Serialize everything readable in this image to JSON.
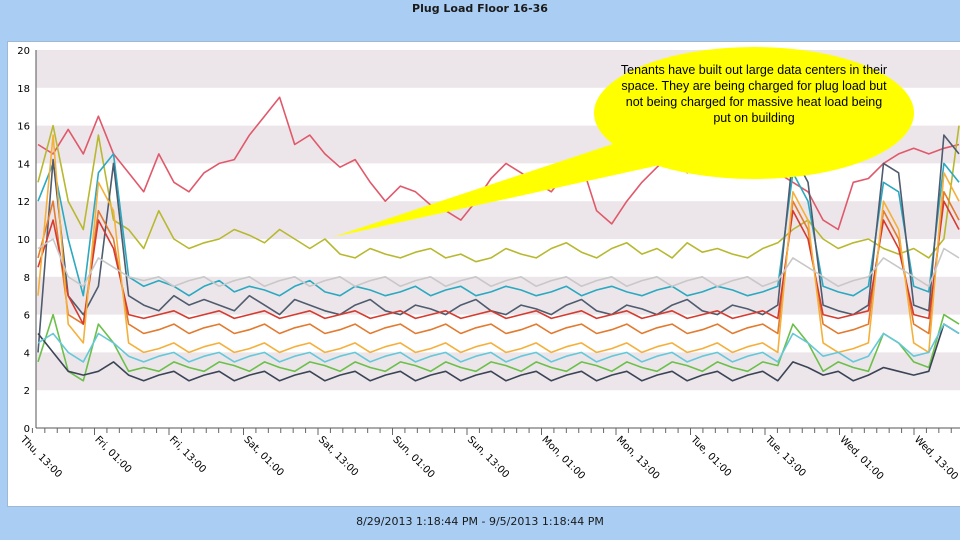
{
  "title": "Plug Load Floor 16-36",
  "footer": "8/29/2013 1:18:44 PM - 9/5/2013 1:18:44 PM",
  "callout": "Tenants have built out large data centers in their space. They are being charged for plug load but not being charged for massive heat load being put on building",
  "chart_data": {
    "type": "line",
    "title": "Plug Load Floor 16-36",
    "ylim": [
      0,
      20
    ],
    "yticks": [
      0,
      2,
      4,
      6,
      8,
      10,
      12,
      14,
      16,
      18,
      20
    ],
    "xlabels": [
      "Thu, 13:00",
      "Fri, 01:00",
      "Fri, 13:00",
      "Sat, 01:00",
      "Sat, 13:00",
      "Sun, 01:00",
      "Sun, 13:00",
      "Mon, 01:00",
      "Mon, 13:00",
      "Tue, 01:00",
      "Tue, 13:00",
      "Wed, 01:00",
      "Wed, 13:00"
    ],
    "grid_bands": true,
    "x_range_hours": [
      0,
      168
    ],
    "series": [
      {
        "color": "#e0596b",
        "values": [
          15.0,
          14.5,
          15.8,
          14.5,
          16.5,
          14.5,
          13.5,
          12.5,
          14.5,
          13.0,
          12.5,
          13.5,
          14.0,
          14.2,
          15.5,
          16.5,
          17.5,
          15.0,
          15.5,
          14.5,
          13.8,
          14.2,
          13.0,
          12.0,
          12.8,
          12.5,
          11.8,
          11.5,
          11.0,
          12.0,
          13.2,
          14.0,
          13.5,
          13.0,
          12.5,
          13.5,
          14.0,
          11.5,
          10.8,
          12.0,
          13.0,
          13.8,
          14.5,
          13.5,
          14.5,
          14.0,
          13.8,
          13.5,
          14.0,
          13.5,
          13.0,
          12.5,
          11.0,
          10.5,
          13.0,
          13.2,
          14.0,
          14.5,
          14.8,
          14.5,
          14.8,
          15.0
        ]
      },
      {
        "color": "#b8b830",
        "values": [
          13.0,
          16.0,
          12.0,
          10.5,
          15.5,
          11.0,
          10.5,
          9.5,
          11.5,
          10.0,
          9.5,
          9.8,
          10.0,
          10.5,
          10.2,
          9.8,
          10.5,
          10.0,
          9.5,
          10.0,
          9.2,
          9.0,
          9.5,
          9.2,
          9.0,
          9.3,
          9.5,
          9.0,
          9.2,
          8.8,
          9.0,
          9.5,
          9.2,
          9.0,
          9.5,
          9.8,
          9.3,
          9.0,
          9.5,
          9.8,
          9.2,
          9.5,
          9.0,
          9.8,
          9.3,
          9.5,
          9.2,
          9.0,
          9.5,
          9.8,
          10.5,
          11.0,
          10.0,
          9.5,
          9.8,
          10.0,
          9.5,
          9.2,
          9.5,
          9.0,
          10.0,
          16.0
        ]
      },
      {
        "color": "#2aa9c0",
        "values": [
          12.0,
          14.0,
          10.0,
          7.0,
          13.5,
          14.5,
          8.0,
          7.5,
          7.8,
          7.5,
          7.0,
          7.5,
          7.8,
          7.2,
          7.5,
          7.3,
          7.0,
          7.5,
          7.8,
          7.2,
          7.0,
          7.5,
          7.3,
          7.0,
          7.2,
          7.5,
          7.0,
          7.3,
          7.5,
          7.0,
          7.2,
          7.5,
          7.3,
          7.0,
          7.2,
          7.5,
          7.0,
          7.3,
          7.5,
          7.2,
          7.0,
          7.3,
          7.5,
          7.0,
          7.2,
          7.5,
          7.3,
          7.0,
          7.2,
          7.5,
          13.5,
          12.0,
          7.5,
          7.2,
          7.0,
          7.5,
          13.0,
          12.5,
          7.5,
          7.2,
          14.0,
          13.0
        ]
      },
      {
        "color": "#4f5b6e",
        "values": [
          4.0,
          14.2,
          7.0,
          6.0,
          7.5,
          14.0,
          7.0,
          6.5,
          6.2,
          7.0,
          6.5,
          6.8,
          6.5,
          6.2,
          7.0,
          6.5,
          6.0,
          6.8,
          6.5,
          6.2,
          6.0,
          6.5,
          6.8,
          6.2,
          6.0,
          6.5,
          6.3,
          6.0,
          6.5,
          6.8,
          6.2,
          6.0,
          6.5,
          6.3,
          6.0,
          6.5,
          6.8,
          6.2,
          6.0,
          6.5,
          6.3,
          6.0,
          6.5,
          6.8,
          6.2,
          6.0,
          6.5,
          6.3,
          6.0,
          6.5,
          14.5,
          13.0,
          6.5,
          6.2,
          6.0,
          6.5,
          14.0,
          13.5,
          6.5,
          6.2,
          15.5,
          14.5
        ]
      },
      {
        "color": "#e27a2f",
        "values": [
          9.0,
          12.0,
          6.0,
          5.5,
          11.5,
          10.0,
          5.5,
          5.0,
          5.2,
          5.5,
          5.0,
          5.3,
          5.5,
          5.0,
          5.2,
          5.5,
          5.0,
          5.3,
          5.5,
          5.0,
          5.2,
          5.5,
          5.0,
          5.3,
          5.5,
          5.0,
          5.2,
          5.5,
          5.0,
          5.3,
          5.5,
          5.0,
          5.2,
          5.5,
          5.0,
          5.3,
          5.5,
          5.0,
          5.2,
          5.5,
          5.0,
          5.3,
          5.5,
          5.0,
          5.2,
          5.5,
          5.0,
          5.3,
          5.5,
          5.0,
          12.0,
          10.5,
          5.5,
          5.0,
          5.2,
          5.5,
          11.5,
          10.0,
          5.5,
          5.0,
          12.5,
          11.0
        ]
      },
      {
        "color": "#d63b2f",
        "values": [
          8.5,
          11.0,
          7.0,
          5.5,
          11.0,
          9.5,
          6.0,
          5.8,
          6.0,
          6.2,
          5.8,
          6.0,
          6.2,
          5.8,
          6.0,
          6.2,
          5.8,
          6.0,
          6.2,
          5.8,
          6.0,
          6.2,
          5.8,
          6.0,
          6.2,
          5.8,
          6.0,
          6.2,
          5.8,
          6.0,
          6.2,
          5.8,
          6.0,
          6.2,
          5.8,
          6.0,
          6.2,
          5.8,
          6.0,
          6.2,
          5.8,
          6.0,
          6.2,
          5.8,
          6.0,
          6.2,
          5.8,
          6.0,
          6.2,
          5.8,
          11.5,
          10.0,
          6.0,
          5.8,
          6.0,
          6.2,
          11.0,
          9.5,
          6.0,
          5.8,
          12.0,
          10.5
        ]
      },
      {
        "color": "#f5b03c",
        "values": [
          7.0,
          15.5,
          5.5,
          4.5,
          13.0,
          11.5,
          4.5,
          4.0,
          4.2,
          4.5,
          4.0,
          4.3,
          4.5,
          4.0,
          4.2,
          4.5,
          4.0,
          4.3,
          4.5,
          4.0,
          4.2,
          4.5,
          4.0,
          4.3,
          4.5,
          4.0,
          4.2,
          4.5,
          4.0,
          4.3,
          4.5,
          4.0,
          4.2,
          4.5,
          4.0,
          4.3,
          4.5,
          4.0,
          4.2,
          4.5,
          4.0,
          4.3,
          4.5,
          4.0,
          4.2,
          4.5,
          4.0,
          4.3,
          4.5,
          4.0,
          12.5,
          11.0,
          4.5,
          4.0,
          4.2,
          4.5,
          12.0,
          10.5,
          4.5,
          4.0,
          13.5,
          12.0
        ]
      },
      {
        "color": "#6cbf4a",
        "values": [
          3.5,
          6.0,
          3.0,
          2.5,
          5.5,
          4.5,
          3.0,
          3.2,
          3.0,
          3.5,
          3.2,
          3.0,
          3.5,
          3.3,
          3.0,
          3.5,
          3.2,
          3.0,
          3.5,
          3.3,
          3.0,
          3.5,
          3.2,
          3.0,
          3.5,
          3.3,
          3.0,
          3.5,
          3.2,
          3.0,
          3.5,
          3.3,
          3.0,
          3.5,
          3.2,
          3.0,
          3.5,
          3.3,
          3.0,
          3.5,
          3.2,
          3.0,
          3.5,
          3.3,
          3.0,
          3.5,
          3.2,
          3.0,
          3.5,
          3.3,
          5.5,
          4.5,
          3.0,
          3.5,
          3.2,
          3.0,
          5.0,
          4.5,
          3.5,
          3.2,
          6.0,
          5.5
        ]
      },
      {
        "color": "#3b4456",
        "values": [
          5.0,
          4.0,
          3.0,
          2.8,
          3.0,
          3.5,
          2.8,
          2.5,
          2.8,
          3.0,
          2.5,
          2.8,
          3.0,
          2.5,
          2.8,
          3.0,
          2.5,
          2.8,
          3.0,
          2.5,
          2.8,
          3.0,
          2.5,
          2.8,
          3.0,
          2.5,
          2.8,
          3.0,
          2.5,
          2.8,
          3.0,
          2.5,
          2.8,
          3.0,
          2.5,
          2.8,
          3.0,
          2.5,
          2.8,
          3.0,
          2.5,
          2.8,
          3.0,
          2.5,
          2.8,
          3.0,
          2.5,
          2.8,
          3.0,
          2.5,
          3.5,
          3.2,
          2.8,
          3.0,
          2.5,
          2.8,
          3.2,
          3.0,
          2.8,
          3.0,
          5.5,
          5.0
        ]
      },
      {
        "color": "#c8c8c8",
        "values": [
          9.5,
          10.0,
          8.0,
          7.5,
          9.0,
          8.5,
          8.0,
          7.8,
          8.0,
          7.5,
          7.8,
          8.0,
          7.5,
          7.8,
          8.0,
          7.5,
          7.8,
          8.0,
          7.5,
          7.8,
          8.0,
          7.5,
          7.8,
          8.0,
          7.5,
          7.8,
          8.0,
          7.5,
          7.8,
          8.0,
          7.5,
          7.8,
          8.0,
          7.5,
          7.8,
          8.0,
          7.5,
          7.8,
          8.0,
          7.5,
          7.8,
          8.0,
          7.5,
          7.8,
          8.0,
          7.5,
          7.8,
          8.0,
          7.5,
          7.8,
          9.0,
          8.5,
          8.0,
          7.5,
          7.8,
          8.0,
          9.0,
          8.5,
          8.0,
          7.5,
          9.5,
          9.0
        ]
      },
      {
        "color": "#64c8d8",
        "values": [
          4.5,
          5.0,
          4.0,
          3.5,
          5.0,
          4.5,
          3.8,
          3.5,
          3.8,
          4.0,
          3.5,
          3.8,
          4.0,
          3.5,
          3.8,
          4.0,
          3.5,
          3.8,
          4.0,
          3.5,
          3.8,
          4.0,
          3.5,
          3.8,
          4.0,
          3.5,
          3.8,
          4.0,
          3.5,
          3.8,
          4.0,
          3.5,
          3.8,
          4.0,
          3.5,
          3.8,
          4.0,
          3.5,
          3.8,
          4.0,
          3.5,
          3.8,
          4.0,
          3.5,
          3.8,
          4.0,
          3.5,
          3.8,
          4.0,
          3.5,
          5.0,
          4.5,
          3.8,
          4.0,
          3.5,
          3.8,
          5.0,
          4.5,
          3.8,
          4.0,
          5.5,
          5.0
        ]
      }
    ]
  }
}
